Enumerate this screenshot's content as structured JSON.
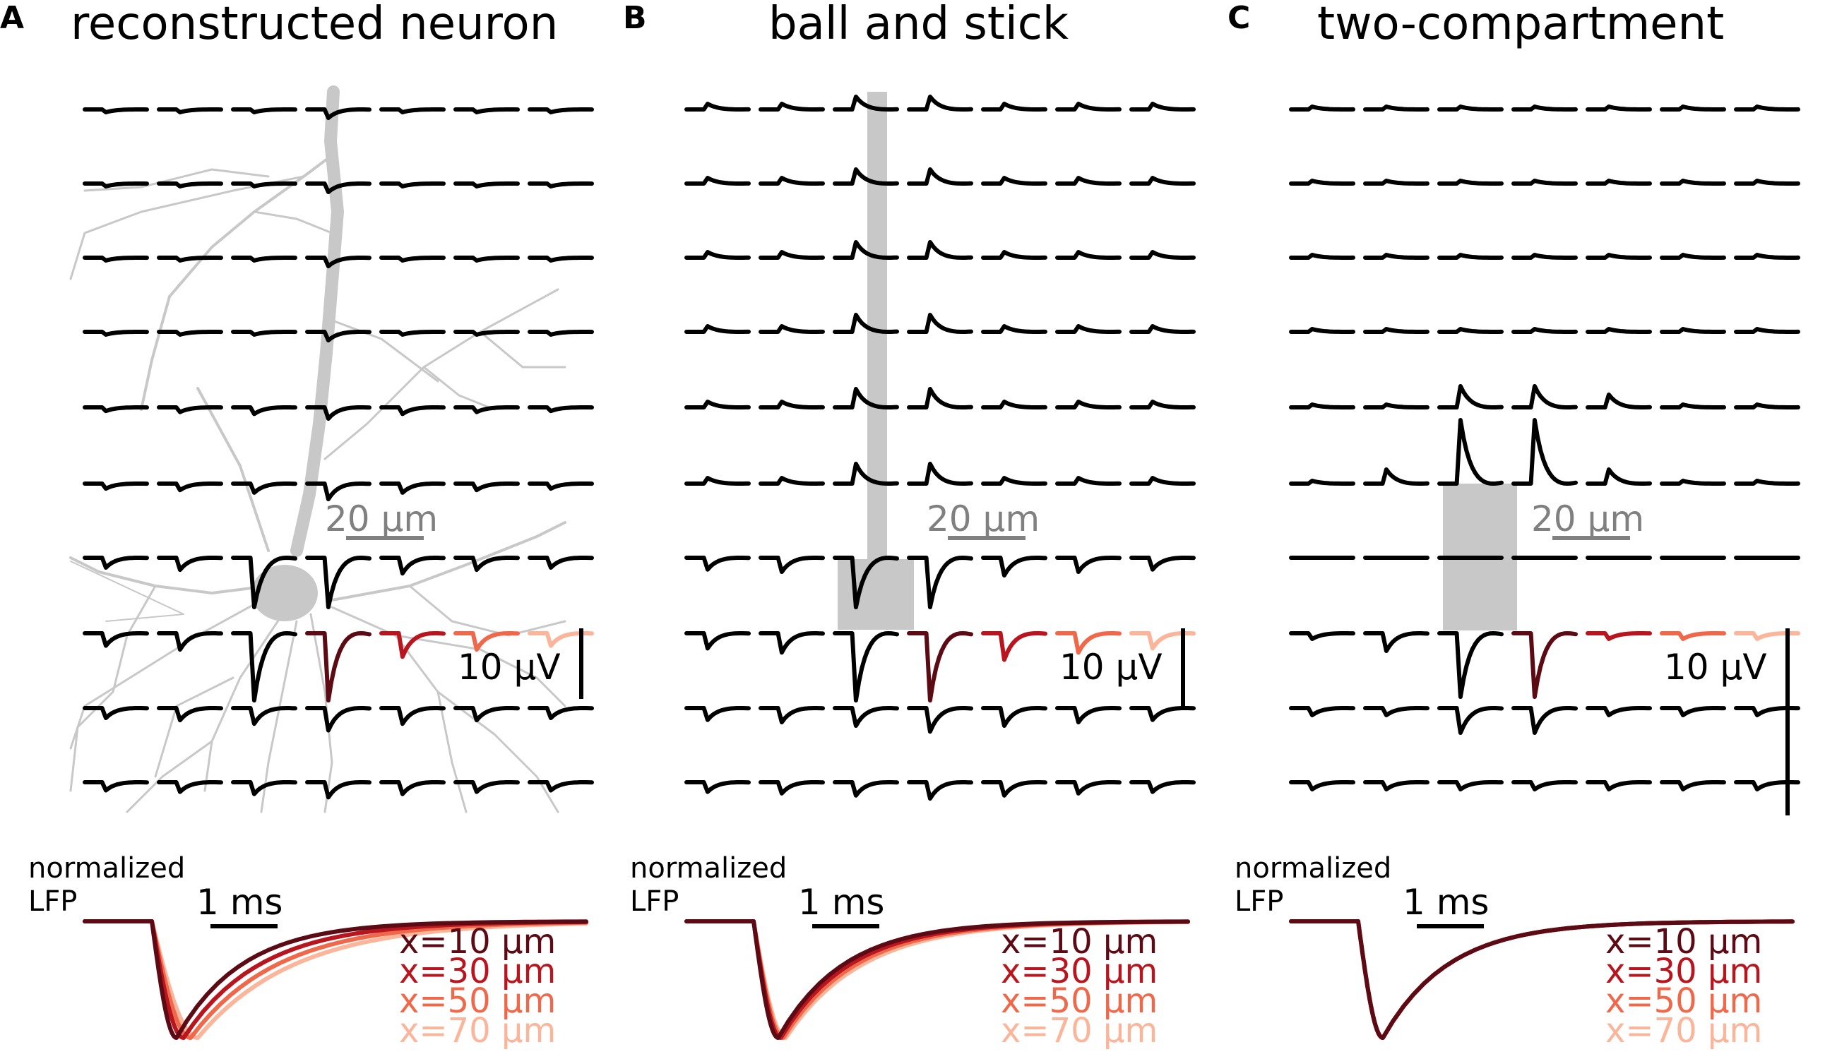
{
  "figure": {
    "panels": [
      {
        "id": "A",
        "letter": "A",
        "title": "reconstructed neuron",
        "morphology": "reconstructed-neuron",
        "scalebar_distance_label": "20 µm",
        "scalebar_voltage_label": "10 µV",
        "axis_label_line1": "normalized",
        "axis_label_line2": "LFP",
        "time_scalebar_label": "1 ms"
      },
      {
        "id": "B",
        "letter": "B",
        "title": "ball and stick",
        "morphology": "ball-and-stick",
        "scalebar_distance_label": "20 µm",
        "scalebar_voltage_label": "10 µV",
        "axis_label_line1": "normalized",
        "axis_label_line2": "LFP",
        "time_scalebar_label": "1 ms"
      },
      {
        "id": "C",
        "letter": "C",
        "title": "two-compartment",
        "morphology": "two-compartment",
        "scalebar_distance_label": "20 µm",
        "scalebar_voltage_label": "10 µV",
        "axis_label_line1": "normalized",
        "axis_label_line2": "LFP",
        "time_scalebar_label": "1 ms"
      }
    ],
    "legend": [
      {
        "label": "x=10 µm",
        "color": "#5c0a14"
      },
      {
        "label": "x=30 µm",
        "color": "#b8151f"
      },
      {
        "label": "x=50 µm",
        "color": "#f0684a"
      },
      {
        "label": "x=70 µm",
        "color": "#fbb59a"
      }
    ],
    "colors": {
      "trace": "#000000",
      "morphology": "#c8c8c8",
      "scalebar_distance": "#808080",
      "highlight": [
        "#5c0a14",
        "#b8151f",
        "#f0684a",
        "#fbb59a"
      ]
    }
  }
}
